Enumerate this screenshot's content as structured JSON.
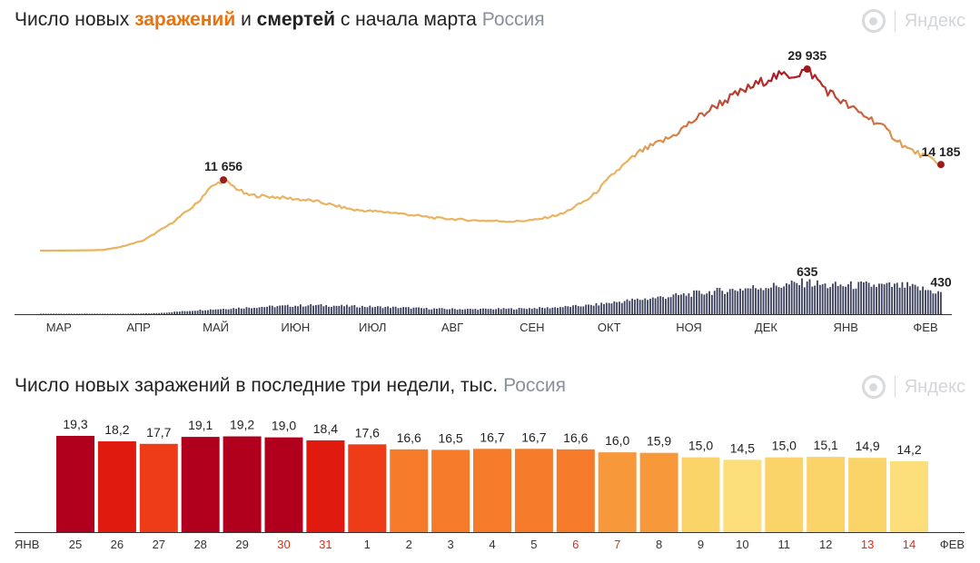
{
  "header1": {
    "part1": "Число новых ",
    "part2": "заражений",
    "part3": " и ",
    "part4": "смертей",
    "part5": " с начала марта",
    "region": "Россия"
  },
  "header2": {
    "text": "Число новых заражений в последние три недели, тыс.",
    "region": "Россия"
  },
  "logo": {
    "text": "Яндекс",
    "icon": "yandex-eye-icon"
  },
  "chart_data": [
    {
      "type": "line",
      "title": "Число новых заражений и смертей с начала марта",
      "months": [
        "МАР",
        "АПР",
        "МАЙ",
        "ИЮН",
        "ИЮЛ",
        "АВГ",
        "СЕН",
        "ОКТ",
        "НОЯ",
        "ДЕК",
        "ЯНВ",
        "ФЕВ"
      ],
      "series": [
        {
          "name": "заражений",
          "color_low": "#e9b463",
          "color_high": "#a8131f",
          "points": [
            [
              "03-01",
              0
            ],
            [
              "03-15",
              30
            ],
            [
              "03-25",
              100
            ],
            [
              "04-01",
              600
            ],
            [
              "04-10",
              1700
            ],
            [
              "04-20",
              4300
            ],
            [
              "04-26",
              6200
            ],
            [
              "05-01",
              7900
            ],
            [
              "05-05",
              10100
            ],
            [
              "05-11",
              11656
            ],
            [
              "05-20",
              9200
            ],
            [
              "06-01",
              8800
            ],
            [
              "06-15",
              8200
            ],
            [
              "07-01",
              6700
            ],
            [
              "07-15",
              6300
            ],
            [
              "08-01",
              5400
            ],
            [
              "08-15",
              5000
            ],
            [
              "09-01",
              4800
            ],
            [
              "09-10",
              5100
            ],
            [
              "09-20",
              6100
            ],
            [
              "10-01",
              8800
            ],
            [
              "10-10",
              12800
            ],
            [
              "10-20",
              16300
            ],
            [
              "11-01",
              18700
            ],
            [
              "11-10",
              21500
            ],
            [
              "11-20",
              24300
            ],
            [
              "12-01",
              26700
            ],
            [
              "12-10",
              28600
            ],
            [
              "12-20",
              29100
            ],
            [
              "12-24",
              29935
            ],
            [
              "01-01",
              26300
            ],
            [
              "01-10",
              23500
            ],
            [
              "01-20",
              21200
            ],
            [
              "02-01",
              16800
            ],
            [
              "02-10",
              15100
            ],
            [
              "02-14",
              14185
            ]
          ],
          "labels": [
            {
              "x": "05-11",
              "value": "11 656"
            },
            {
              "x": "12-24",
              "value": "29 935"
            },
            {
              "x": "02-14",
              "value": "14 185"
            }
          ]
        },
        {
          "name": "смертей",
          "type": "bar",
          "color": "#3a3f5c",
          "points": [
            [
              "03-01",
              0
            ],
            [
              "04-01",
              4
            ],
            [
              "04-15",
              20
            ],
            [
              "05-01",
              80
            ],
            [
              "05-15",
              120
            ],
            [
              "06-01",
              160
            ],
            [
              "06-15",
              180
            ],
            [
              "07-01",
              160
            ],
            [
              "07-15",
              140
            ],
            [
              "08-01",
              110
            ],
            [
              "08-15",
              100
            ],
            [
              "09-01",
              110
            ],
            [
              "09-15",
              130
            ],
            [
              "10-01",
              180
            ],
            [
              "10-15",
              270
            ],
            [
              "11-01",
              360
            ],
            [
              "11-15",
              440
            ],
            [
              "12-01",
              520
            ],
            [
              "12-15",
              580
            ],
            [
              "12-24",
              635
            ],
            [
              "01-01",
              570
            ],
            [
              "01-15",
              580
            ],
            [
              "02-01",
              560
            ],
            [
              "02-14",
              430
            ]
          ],
          "labels": [
            {
              "x": "12-24",
              "value": "635"
            },
            {
              "x": "02-14",
              "value": "430"
            }
          ]
        }
      ]
    },
    {
      "type": "bar",
      "title": "Число новых заражений в последние три недели, тыс.",
      "start_month": "ЯНВ",
      "end_month": "ФЕВ",
      "categories": [
        "25",
        "26",
        "27",
        "28",
        "29",
        "30",
        "31",
        "1",
        "2",
        "3",
        "4",
        "5",
        "6",
        "7",
        "8",
        "9",
        "10",
        "11",
        "12",
        "13",
        "14"
      ],
      "values": [
        19.3,
        18.2,
        17.7,
        19.1,
        19.2,
        19.0,
        18.4,
        17.6,
        16.6,
        16.5,
        16.7,
        16.7,
        16.6,
        16.0,
        15.9,
        15.0,
        14.5,
        15.0,
        15.1,
        14.9,
        14.2
      ],
      "value_labels": [
        "19,3",
        "18,2",
        "17,7",
        "19,1",
        "19,2",
        "19,0",
        "18,4",
        "17,6",
        "16,6",
        "16,5",
        "16,7",
        "16,7",
        "16,6",
        "16,0",
        "15,9",
        "15,0",
        "14,5",
        "15,0",
        "15,1",
        "14,9",
        "14,2"
      ],
      "weekend": [
        false,
        false,
        false,
        false,
        false,
        true,
        true,
        false,
        false,
        false,
        false,
        false,
        true,
        true,
        false,
        false,
        false,
        false,
        false,
        true,
        true
      ],
      "colors": [
        "#b0001e",
        "#e01a0f",
        "#ee3b18",
        "#b0001e",
        "#b0001e",
        "#b0001e",
        "#e01a0f",
        "#ee3b18",
        "#f57a2a",
        "#f57a2a",
        "#f57a2a",
        "#f57a2a",
        "#f57a2a",
        "#f7983a",
        "#f7983a",
        "#fbd469",
        "#fcde7a",
        "#fbd469",
        "#fbd469",
        "#fbd469",
        "#fcde7a"
      ],
      "weekend_color": "#e02a16"
    }
  ]
}
